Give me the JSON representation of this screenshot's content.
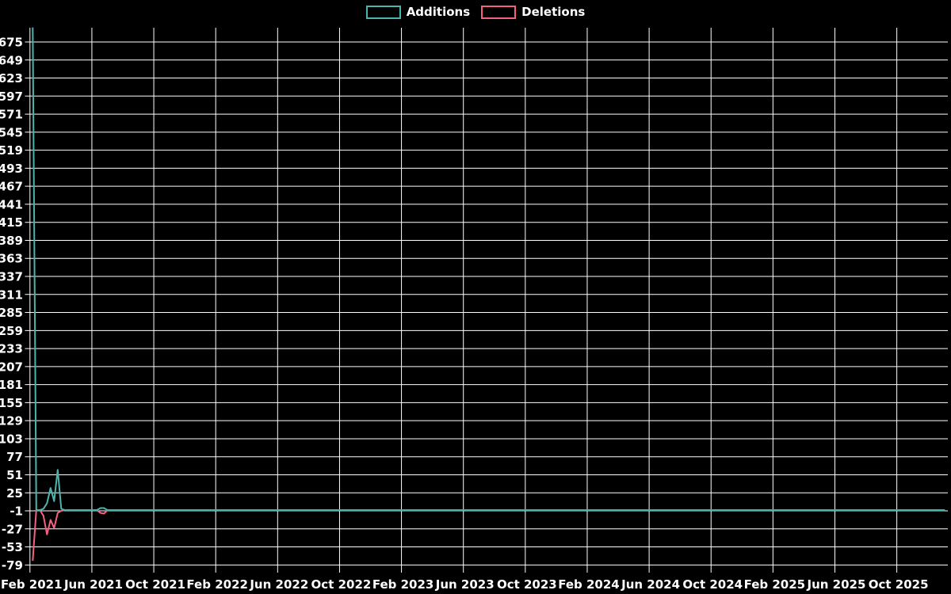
{
  "chart_data": {
    "type": "line",
    "title": "",
    "legend_position": "top-center",
    "grid": true,
    "background_color": "#000000",
    "grid_color": "#ffffff",
    "text_color": "#ffffff",
    "legend": [
      {
        "label": "Additions",
        "color": "#4bb5ad"
      },
      {
        "label": "Deletions",
        "color": "#f4627f"
      }
    ],
    "x_tick_labels": [
      "Feb 2021",
      "Jun 2021",
      "Oct 2021",
      "Feb 2022",
      "Jun 2022",
      "Oct 2022",
      "Feb 2023",
      "Jun 2023",
      "Oct 2023",
      "Feb 2024",
      "Jun 2024",
      "Oct 2024",
      "Feb 2025",
      "Jun 2025",
      "Oct 2025"
    ],
    "y_ticks": [
      675,
      649,
      623,
      597,
      571,
      545,
      519,
      493,
      467,
      441,
      415,
      389,
      363,
      337,
      311,
      285,
      259,
      233,
      207,
      181,
      155,
      129,
      103,
      77,
      51,
      25,
      -1,
      -27,
      -53,
      -79
    ],
    "ylim": [
      -90,
      696
    ],
    "x_unit": "weeks",
    "num_points": 257,
    "series": [
      {
        "name": "Additions",
        "color": "#4bb5ad",
        "default_value": 0,
        "points_sparse": {
          "0": 696,
          "3": 2,
          "4": 10,
          "5": 32,
          "6": 13,
          "7": 58,
          "8": 2,
          "19": 3,
          "20": 3
        }
      },
      {
        "name": "Deletions",
        "color": "#f4627f",
        "default_value": 0,
        "points_sparse": {
          "0": -73,
          "3": -8,
          "4": -35,
          "5": -14,
          "6": -26,
          "7": -4,
          "8": -1,
          "19": -4,
          "20": -5
        }
      }
    ]
  }
}
